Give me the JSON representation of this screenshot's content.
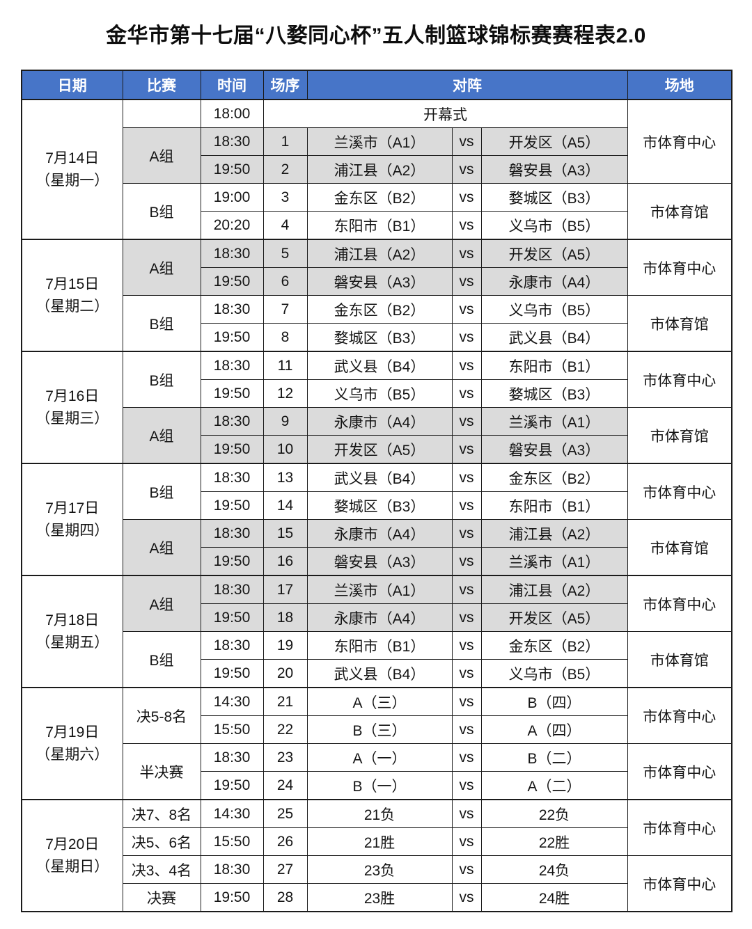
{
  "title": "金华市第十七届“八婺同心杯”五人制篮球锦标赛赛程表2.0",
  "vs_label": "vs",
  "colors": {
    "header_bg": "#4775C8",
    "header_text": "#FFFFFF",
    "shaded_row_bg": "#DBDBDB",
    "border": "#1B1B1B"
  },
  "header": {
    "columns": [
      {
        "label": "日期",
        "colspan": 1
      },
      {
        "label": "比赛",
        "colspan": 1
      },
      {
        "label": "时间",
        "colspan": 1
      },
      {
        "label": "场序",
        "colspan": 1
      },
      {
        "label": "对阵",
        "colspan": 3
      },
      {
        "label": "场地",
        "colspan": 1
      }
    ]
  },
  "days": [
    {
      "date": "7月14日",
      "weekday": "（星期一）",
      "groups": [
        {
          "label": "",
          "shaded": false,
          "rows": [
            {
              "time": "18:00",
              "event": "开幕式"
            }
          ]
        },
        {
          "label": "A组",
          "shaded": true,
          "rows": [
            {
              "time": "18:30",
              "no": "1",
              "home": "兰溪市（A1）",
              "away": "开发区（A5）"
            },
            {
              "time": "19:50",
              "no": "2",
              "home": "浦江县（A2）",
              "away": "磐安县（A3）"
            }
          ]
        },
        {
          "label": "B组",
          "shaded": false,
          "rows": [
            {
              "time": "19:00",
              "no": "3",
              "home": "金东区（B2）",
              "away": "婺城区（B3）"
            },
            {
              "time": "20:20",
              "no": "4",
              "home": "东阳市（B1）",
              "away": "义乌市（B5）"
            }
          ]
        }
      ],
      "venues": [
        {
          "name": "市体育中心",
          "span": 3
        },
        {
          "name": "市体育馆",
          "span": 2
        }
      ]
    },
    {
      "date": "7月15日",
      "weekday": "（星期二）",
      "groups": [
        {
          "label": "A组",
          "shaded": true,
          "rows": [
            {
              "time": "18:30",
              "no": "5",
              "home": "浦江县（A2）",
              "away": "开发区（A5）"
            },
            {
              "time": "19:50",
              "no": "6",
              "home": "磐安县（A3）",
              "away": "永康市（A4）"
            }
          ]
        },
        {
          "label": "B组",
          "shaded": false,
          "rows": [
            {
              "time": "18:30",
              "no": "7",
              "home": "金东区（B2）",
              "away": "义乌市（B5）"
            },
            {
              "time": "19:50",
              "no": "8",
              "home": "婺城区（B3）",
              "away": "武义县（B4）"
            }
          ]
        }
      ],
      "venues": [
        {
          "name": "市体育中心",
          "span": 2
        },
        {
          "name": "市体育馆",
          "span": 2
        }
      ]
    },
    {
      "date": "7月16日",
      "weekday": "（星期三）",
      "groups": [
        {
          "label": "B组",
          "shaded": false,
          "rows": [
            {
              "time": "18:30",
              "no": "11",
              "home": "武义县（B4）",
              "away": "东阳市（B1）"
            },
            {
              "time": "19:50",
              "no": "12",
              "home": "义乌市（B5）",
              "away": "婺城区（B3）"
            }
          ]
        },
        {
          "label": "A组",
          "shaded": true,
          "rows": [
            {
              "time": "18:30",
              "no": "9",
              "home": "永康市（A4）",
              "away": "兰溪市（A1）"
            },
            {
              "time": "19:50",
              "no": "10",
              "home": "开发区（A5）",
              "away": "磐安县（A3）"
            }
          ]
        }
      ],
      "venues": [
        {
          "name": "市体育中心",
          "span": 2
        },
        {
          "name": "市体育馆",
          "span": 2
        }
      ]
    },
    {
      "date": "7月17日",
      "weekday": "（星期四）",
      "groups": [
        {
          "label": "B组",
          "shaded": false,
          "rows": [
            {
              "time": "18:30",
              "no": "13",
              "home": "武义县（B4）",
              "away": "金东区（B2）"
            },
            {
              "time": "19:50",
              "no": "14",
              "home": "婺城区（B3）",
              "away": "东阳市（B1）"
            }
          ]
        },
        {
          "label": "A组",
          "shaded": true,
          "rows": [
            {
              "time": "18:30",
              "no": "15",
              "home": "永康市（A4）",
              "away": "浦江县（A2）"
            },
            {
              "time": "19:50",
              "no": "16",
              "home": "磐安县（A3）",
              "away": "兰溪市（A1）"
            }
          ]
        }
      ],
      "venues": [
        {
          "name": "市体育中心",
          "span": 2
        },
        {
          "name": "市体育馆",
          "span": 2
        }
      ]
    },
    {
      "date": "7月18日",
      "weekday": "（星期五）",
      "groups": [
        {
          "label": "A组",
          "shaded": true,
          "rows": [
            {
              "time": "18:30",
              "no": "17",
              "home": "兰溪市（A1）",
              "away": "浦江县（A2）"
            },
            {
              "time": "19:50",
              "no": "18",
              "home": "永康市（A4）",
              "away": "开发区（A5）"
            }
          ]
        },
        {
          "label": "B组",
          "shaded": false,
          "rows": [
            {
              "time": "18:30",
              "no": "19",
              "home": "东阳市（B1）",
              "away": "金东区（B2）"
            },
            {
              "time": "19:50",
              "no": "20",
              "home": "武义县（B4）",
              "away": "义乌市（B5）"
            }
          ]
        }
      ],
      "venues": [
        {
          "name": "市体育中心",
          "span": 2
        },
        {
          "name": "市体育馆",
          "span": 2
        }
      ]
    },
    {
      "date": "7月19日",
      "weekday": "（星期六）",
      "groups": [
        {
          "label": "决5-8名",
          "shaded": false,
          "rows": [
            {
              "time": "14:30",
              "no": "21",
              "home": "A（三）",
              "away": "B（四）"
            },
            {
              "time": "15:50",
              "no": "22",
              "home": "B（三）",
              "away": "A（四）"
            }
          ]
        },
        {
          "label": "半决赛",
          "shaded": false,
          "rows": [
            {
              "time": "18:30",
              "no": "23",
              "home": "A（一）",
              "away": "B（二）"
            },
            {
              "time": "19:50",
              "no": "24",
              "home": "B（一）",
              "away": "A（二）"
            }
          ]
        }
      ],
      "venues": [
        {
          "name": "市体育中心",
          "span": 2
        },
        {
          "name": "市体育中心",
          "span": 2
        }
      ]
    },
    {
      "date": "7月20日",
      "weekday": "（星期日）",
      "groups": [
        {
          "label": "决7、8名",
          "shaded": false,
          "rows": [
            {
              "time": "14:30",
              "no": "25",
              "home": "21负",
              "away": "22负"
            }
          ]
        },
        {
          "label": "决5、6名",
          "shaded": false,
          "rows": [
            {
              "time": "15:50",
              "no": "26",
              "home": "21胜",
              "away": "22胜"
            }
          ]
        },
        {
          "label": "决3、4名",
          "shaded": false,
          "rows": [
            {
              "time": "18:30",
              "no": "27",
              "home": "23负",
              "away": "24负"
            }
          ]
        },
        {
          "label": "决赛",
          "shaded": false,
          "rows": [
            {
              "time": "19:50",
              "no": "28",
              "home": "23胜",
              "away": "24胜"
            }
          ]
        }
      ],
      "venues": [
        {
          "name": "市体育中心",
          "span": 2
        },
        {
          "name": "市体育中心",
          "span": 2
        }
      ]
    }
  ]
}
